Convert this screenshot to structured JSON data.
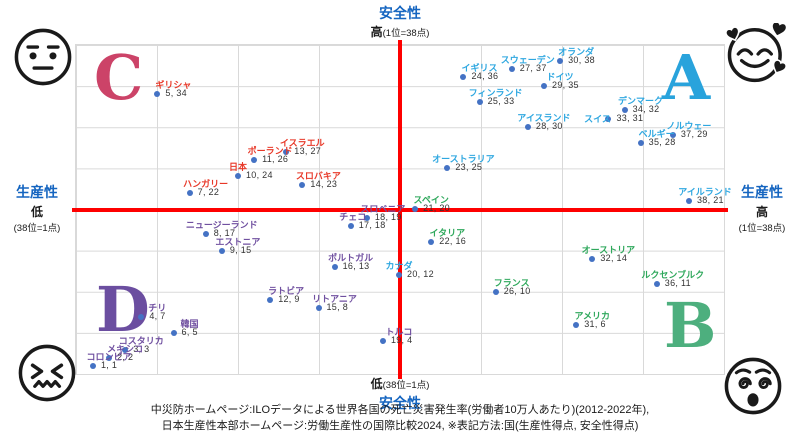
{
  "chart_data": {
    "type": "scatter",
    "title_top": "安全性",
    "title_side": "生産性",
    "xlim": [
      1,
      38
    ],
    "ylim": [
      1,
      38
    ],
    "grid": true,
    "marker_color": "#4472c4",
    "value_format": "生産性得点, 安全性得点",
    "axes": {
      "top": {
        "title": "安全性",
        "strong": "高",
        "note": "(1位=38点)"
      },
      "bottom": {
        "strong": "低",
        "note": "(38位=1点)",
        "title": "安全性"
      },
      "left": {
        "title": "生産性",
        "strong": "低",
        "note": "(38位=1点)"
      },
      "right": {
        "title": "生産性",
        "strong": "高",
        "note": "(1位=38点)"
      }
    },
    "axis_title_color": "#1565c0",
    "quadrants": [
      {
        "letter": "C",
        "position": "top-left",
        "color": "#cc4368"
      },
      {
        "letter": "A",
        "position": "top-right",
        "color": "#29a3dc"
      },
      {
        "letter": "D",
        "position": "bottom-left",
        "color": "#6b4ea0"
      },
      {
        "letter": "B",
        "position": "bottom-right",
        "color": "#4daf7e"
      }
    ],
    "series": [
      {
        "id": "A",
        "label_color": "#2ea7e0",
        "points": [
          {
            "country": "オランダ",
            "x": 30,
            "y": 38
          },
          {
            "country": "スウェーデン",
            "x": 27,
            "y": 37
          },
          {
            "country": "イギリス",
            "x": 24,
            "y": 36
          },
          {
            "country": "ドイツ",
            "x": 29,
            "y": 35
          },
          {
            "country": "フィンランド",
            "x": 25,
            "y": 33
          },
          {
            "country": "デンマーク",
            "x": 34,
            "y": 32
          },
          {
            "country": "スイス",
            "x": 33,
            "y": 31,
            "label_dx": -27,
            "label_dy": 9
          },
          {
            "country": "アイスランド",
            "x": 28,
            "y": 30
          },
          {
            "country": "ノルウェー",
            "x": 37,
            "y": 29
          },
          {
            "country": "ベルギー",
            "x": 35,
            "y": 28
          },
          {
            "country": "オーストラリア",
            "x": 23,
            "y": 25
          },
          {
            "country": "アイルランド",
            "x": 38,
            "y": 21
          },
          {
            "country": "カナダ",
            "x": 20,
            "y": 12,
            "label_dx": -16
          }
        ]
      },
      {
        "id": "B",
        "label_color": "#2fa85c",
        "points": [
          {
            "country": "スペイン",
            "x": 21,
            "y": 20
          },
          {
            "country": "イタリア",
            "x": 22,
            "y": 16
          },
          {
            "country": "オーストリア",
            "x": 32,
            "y": 14
          },
          {
            "country": "ルクセンブルク",
            "x": 36,
            "y": 11
          },
          {
            "country": "フランス",
            "x": 26,
            "y": 10
          },
          {
            "country": "アメリカ",
            "x": 31,
            "y": 6
          }
        ]
      },
      {
        "id": "C",
        "label_color": "#e83828",
        "points": [
          {
            "country": "ギリシャ",
            "x": 5,
            "y": 34
          },
          {
            "country": "イスラエル",
            "x": 13,
            "y": 27
          },
          {
            "country": "ポーランド",
            "x": 11,
            "y": 26
          },
          {
            "country": "日本",
            "x": 10,
            "y": 24,
            "label_dx": -16
          },
          {
            "country": "ハンガリー",
            "x": 7,
            "y": 22
          },
          {
            "country": "スロバキア",
            "x": 14,
            "y": 23
          }
        ]
      },
      {
        "id": "D",
        "label_color": "#7050a0",
        "points": [
          {
            "country": "スロベニア",
            "x": 18,
            "y": 19
          },
          {
            "country": "チェコ",
            "x": 17,
            "y": 18,
            "label_dx": -14
          },
          {
            "country": "ニュージーランド",
            "x": 8,
            "y": 17
          },
          {
            "country": "エストニア",
            "x": 9,
            "y": 15
          },
          {
            "country": "ポルトガル",
            "x": 16,
            "y": 13
          },
          {
            "country": "ラトビア",
            "x": 12,
            "y": 9
          },
          {
            "country": "リトアニア",
            "x": 15,
            "y": 8
          },
          {
            "country": "チリ",
            "x": 4,
            "y": 7
          },
          {
            "country": "韓国",
            "x": 6,
            "y": 5
          },
          {
            "country": "コスタリカ",
            "x": 3,
            "y": 3
          },
          {
            "country": "メキシコ",
            "x": 2,
            "y": 2
          },
          {
            "country": "コロンビア",
            "x": 1,
            "y": 1
          },
          {
            "country": "トルコ",
            "x": 19,
            "y": 4
          }
        ]
      }
    ]
  },
  "corner_emojis": {
    "top_left": "neutral-face",
    "top_right": "smiling-face-with-hearts",
    "bottom_left": "confounded-face",
    "bottom_right": "dizzy-face"
  },
  "caption": {
    "line1": "中災防ホームページ:ILOデータによる世界各国の死亡災害発生率(労働者10万人あたり)(2012-2022年),",
    "line2": "日本生産性本部ホームページ:労働生産性の国際比較2024, ※表記方法:国(生産性得点, 安全性得点)"
  }
}
